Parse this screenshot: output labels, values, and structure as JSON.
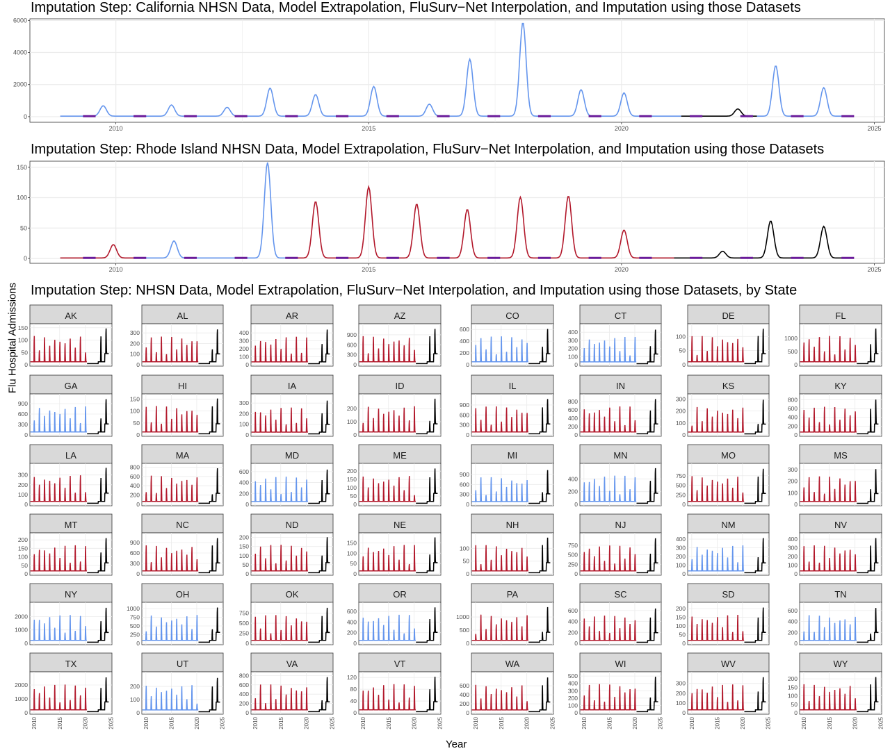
{
  "titles": {
    "ca": "Imputation Step: California NHSN Data, Model Extrapolation, FluSurv−Net Interpolation, and Imputation using those Datasets",
    "ri": "Imputation Step: Rhode Island NHSN Data, Model Extrapolation, FluSurv−Net Interpolation, and Imputation using those Datasets",
    "states": "Imputation Step: NHSN Data, Model Extrapolation, FluSurv−Net Interpolation, and Imputation using those Datasets, by State"
  },
  "labels": {
    "y": "Flu Hospital Admissions",
    "x": "Year"
  },
  "colors": {
    "model": "#B2182B",
    "flusurv": "#6495ED",
    "imputed": "#6A1B9A",
    "nhsn": "#000000",
    "grid": "#EBEBEB",
    "strip": "#D9D9D9"
  },
  "chart_data": [
    {
      "type": "line",
      "id": "ca",
      "xlim": [
        2008.3,
        2025.2
      ],
      "ylim": [
        -350,
        6100
      ],
      "xticks": [
        2010,
        2015,
        2020,
        2025
      ],
      "yticks": [
        0,
        2000,
        4000,
        6000
      ],
      "peaks": [
        {
          "x": 2009.75,
          "y": 650,
          "src": "flusurv"
        },
        {
          "x": 2011.1,
          "y": 700,
          "src": "flusurv"
        },
        {
          "x": 2012.2,
          "y": 550,
          "src": "flusurv"
        },
        {
          "x": 2013.05,
          "y": 1750,
          "src": "flusurv"
        },
        {
          "x": 2013.95,
          "y": 1350,
          "src": "flusurv"
        },
        {
          "x": 2015.1,
          "y": 1850,
          "src": "flusurv"
        },
        {
          "x": 2016.2,
          "y": 750,
          "src": "flusurv"
        },
        {
          "x": 2017.0,
          "y": 3550,
          "src": "flusurv"
        },
        {
          "x": 2018.05,
          "y": 5850,
          "src": "flusurv"
        },
        {
          "x": 2019.2,
          "y": 1650,
          "src": "flusurv"
        },
        {
          "x": 2020.05,
          "y": 1450,
          "src": "flusurv"
        },
        {
          "x": 2022.3,
          "y": 450,
          "src": "nhsn"
        },
        {
          "x": 2023.05,
          "y": 3150,
          "src": "flusurv"
        },
        {
          "x": 2024.0,
          "y": 1780,
          "src": "flusurv"
        }
      ]
    },
    {
      "type": "line",
      "id": "ri",
      "xlim": [
        2008.3,
        2025.2
      ],
      "ylim": [
        -8,
        160
      ],
      "xticks": [
        2010,
        2015,
        2020,
        2025
      ],
      "yticks": [
        0,
        50,
        100,
        150
      ],
      "peaks": [
        {
          "x": 2009.95,
          "y": 22,
          "src": "model"
        },
        {
          "x": 2011.15,
          "y": 28,
          "src": "flusurv"
        },
        {
          "x": 2013.0,
          "y": 157,
          "src": "flusurv"
        },
        {
          "x": 2013.95,
          "y": 93,
          "src": "model"
        },
        {
          "x": 2015.0,
          "y": 117,
          "src": "model"
        },
        {
          "x": 2015.95,
          "y": 89,
          "src": "model"
        },
        {
          "x": 2016.95,
          "y": 80,
          "src": "model"
        },
        {
          "x": 2018.0,
          "y": 100,
          "src": "model"
        },
        {
          "x": 2018.95,
          "y": 102,
          "src": "model"
        },
        {
          "x": 2020.05,
          "y": 46,
          "src": "model"
        },
        {
          "x": 2022.0,
          "y": 11,
          "src": "nhsn"
        },
        {
          "x": 2022.95,
          "y": 61,
          "src": "nhsn"
        },
        {
          "x": 2024.0,
          "y": 52,
          "src": "nhsn"
        }
      ]
    },
    {
      "type": "line",
      "id": "states",
      "xlim": [
        2009.2,
        2025.2
      ],
      "xticks": [
        "2010",
        "2015",
        "2020",
        "2025"
      ],
      "panels": [
        {
          "state": "AK",
          "yticks": [
            0,
            50,
            100,
            150
          ],
          "ymax": 155,
          "src": "model",
          "peak": 150
        },
        {
          "state": "AL",
          "yticks": [
            0,
            100,
            200,
            300
          ],
          "ymax": 360,
          "src": "model",
          "peak": 340
        },
        {
          "state": "AR",
          "yticks": [
            0,
            100,
            200,
            300,
            400
          ],
          "ymax": 480,
          "src": "model",
          "peak": 450
        },
        {
          "state": "AZ",
          "yticks": [
            0,
            300,
            600,
            900
          ],
          "ymax": 1150,
          "src": "model",
          "peak": 1100
        },
        {
          "state": "CO",
          "yticks": [
            0,
            200,
            400,
            600
          ],
          "ymax": 650,
          "src": "flusurv",
          "peak": 620
        },
        {
          "state": "CT",
          "yticks": [
            0,
            100,
            200,
            300,
            400
          ],
          "ymax": 470,
          "src": "flusurv",
          "peak": 440
        },
        {
          "state": "DE",
          "yticks": [
            0,
            50,
            100
          ],
          "ymax": 135,
          "src": "model",
          "peak": 130
        },
        {
          "state": "FL",
          "yticks": [
            0,
            500,
            1000
          ],
          "ymax": 1450,
          "src": "model",
          "peak": 1400
        },
        {
          "state": "GA",
          "yticks": [
            0,
            300,
            600,
            900
          ],
          "ymax": 1100,
          "src": "flusurv",
          "peak": 1050
        },
        {
          "state": "HI",
          "yticks": [
            0,
            50,
            100,
            150
          ],
          "ymax": 160,
          "src": "model",
          "peak": 155
        },
        {
          "state": "IA",
          "yticks": [
            0,
            100,
            200,
            300
          ],
          "ymax": 360,
          "src": "model",
          "peak": 330
        },
        {
          "state": "ID",
          "yticks": [
            0,
            100,
            200
          ],
          "ymax": 290,
          "src": "model",
          "peak": 280
        },
        {
          "state": "IL",
          "yticks": [
            0,
            300,
            600,
            900
          ],
          "ymax": 1150,
          "src": "model",
          "peak": 1100
        },
        {
          "state": "IN",
          "yticks": [
            0,
            200,
            400,
            600,
            800
          ],
          "ymax": 920,
          "src": "model",
          "peak": 880
        },
        {
          "state": "KS",
          "yticks": [
            0,
            100,
            200,
            300
          ],
          "ymax": 320,
          "src": "model",
          "peak": 300
        },
        {
          "state": "KY",
          "yticks": [
            0,
            200,
            400,
            600,
            800
          ],
          "ymax": 870,
          "src": "model",
          "peak": 820
        },
        {
          "state": "LA",
          "yticks": [
            0,
            100,
            200,
            300
          ],
          "ymax": 390,
          "src": "model",
          "peak": 380
        },
        {
          "state": "MA",
          "yticks": [
            0,
            200,
            400,
            600,
            800
          ],
          "ymax": 820,
          "src": "model",
          "peak": 790
        },
        {
          "state": "MD",
          "yticks": [
            0,
            200,
            400,
            600
          ],
          "ymax": 700,
          "src": "flusurv",
          "peak": 650
        },
        {
          "state": "ME",
          "yticks": [
            0,
            50,
            100,
            150,
            200
          ],
          "ymax": 230,
          "src": "model",
          "peak": 220
        },
        {
          "state": "MI",
          "yticks": [
            0,
            300,
            600,
            900
          ],
          "ymax": 1150,
          "src": "flusurv",
          "peak": 1050
        },
        {
          "state": "MN",
          "yticks": [
            0,
            200,
            400
          ],
          "ymax": 600,
          "src": "flusurv",
          "peak": 580
        },
        {
          "state": "MO",
          "yticks": [
            0,
            250,
            500,
            750
          ],
          "ymax": 1000,
          "src": "model",
          "peak": 950
        },
        {
          "state": "MS",
          "yticks": [
            0,
            100,
            200,
            300
          ],
          "ymax": 330,
          "src": "model",
          "peak": 310
        },
        {
          "state": "MT",
          "yticks": [
            0,
            50,
            100,
            150,
            200
          ],
          "ymax": 225,
          "src": "model",
          "peak": 215
        },
        {
          "state": "NC",
          "yticks": [
            0,
            300,
            600,
            900
          ],
          "ymax": 1100,
          "src": "model",
          "peak": 1050
        },
        {
          "state": "ND",
          "yticks": [
            0,
            50,
            100,
            150,
            200
          ],
          "ymax": 210,
          "src": "model",
          "peak": 205
        },
        {
          "state": "NE",
          "yticks": [
            0,
            50,
            100,
            150
          ],
          "ymax": 185,
          "src": "model",
          "peak": 180
        },
        {
          "state": "NH",
          "yticks": [
            0,
            50,
            100
          ],
          "ymax": 150,
          "src": "model",
          "peak": 145
        },
        {
          "state": "NJ",
          "yticks": [
            0,
            250,
            500,
            750
          ],
          "ymax": 1000,
          "src": "model",
          "peak": 950
        },
        {
          "state": "NM",
          "yticks": [
            0,
            100,
            200,
            300,
            400
          ],
          "ymax": 440,
          "src": "flusurv",
          "peak": 420
        },
        {
          "state": "NV",
          "yticks": [
            0,
            100,
            200,
            300,
            400
          ],
          "ymax": 440,
          "src": "model",
          "peak": 420
        },
        {
          "state": "NY",
          "yticks": [
            0,
            1000,
            2000
          ],
          "ymax": 2850,
          "src": "flusurv",
          "peak": 2700
        },
        {
          "state": "OH",
          "yticks": [
            0,
            250,
            500,
            750,
            1000
          ],
          "ymax": 1100,
          "src": "flusurv",
          "peak": 1050
        },
        {
          "state": "OK",
          "yticks": [
            0,
            250,
            500,
            750
          ],
          "ymax": 950,
          "src": "model",
          "peak": 900
        },
        {
          "state": "OR",
          "yticks": [
            0,
            200,
            400,
            600
          ],
          "ymax": 720,
          "src": "flusurv",
          "peak": 690
        },
        {
          "state": "PA",
          "yticks": [
            0,
            500,
            1000
          ],
          "ymax": 1450,
          "src": "model",
          "peak": 1400
        },
        {
          "state": "SC",
          "yticks": [
            0,
            200,
            400,
            600
          ],
          "ymax": 700,
          "src": "model",
          "peak": 650
        },
        {
          "state": "SD",
          "yticks": [
            0,
            50,
            100,
            150,
            200
          ],
          "ymax": 220,
          "src": "model",
          "peak": 210
        },
        {
          "state": "TN",
          "yticks": [
            0,
            200,
            400,
            600
          ],
          "ymax": 700,
          "src": "flusurv",
          "peak": 660
        },
        {
          "state": "TX",
          "yticks": [
            0,
            1000,
            2000
          ],
          "ymax": 2750,
          "src": "model",
          "peak": 2600
        },
        {
          "state": "UT",
          "yticks": [
            0,
            100,
            200
          ],
          "ymax": 290,
          "src": "flusurv",
          "peak": 270
        },
        {
          "state": "VA",
          "yticks": [
            0,
            200,
            400,
            600,
            800
          ],
          "ymax": 820,
          "src": "model",
          "peak": 780
        },
        {
          "state": "VT",
          "yticks": [
            0,
            40,
            80,
            120
          ],
          "ymax": 130,
          "src": "model",
          "peak": 125
        },
        {
          "state": "WA",
          "yticks": [
            0,
            200,
            400,
            600
          ],
          "ymax": 850,
          "src": "model",
          "peak": 800
        },
        {
          "state": "WI",
          "yticks": [
            0,
            100,
            200,
            300,
            400,
            500
          ],
          "ymax": 520,
          "src": "model",
          "peak": 500
        },
        {
          "state": "WV",
          "yticks": [
            0,
            100,
            200,
            300
          ],
          "ymax": 390,
          "src": "model",
          "peak": 370
        },
        {
          "state": "WY",
          "yticks": [
            0,
            50,
            100,
            150,
            200
          ],
          "ymax": 225,
          "src": "model",
          "peak": 215
        }
      ]
    }
  ]
}
